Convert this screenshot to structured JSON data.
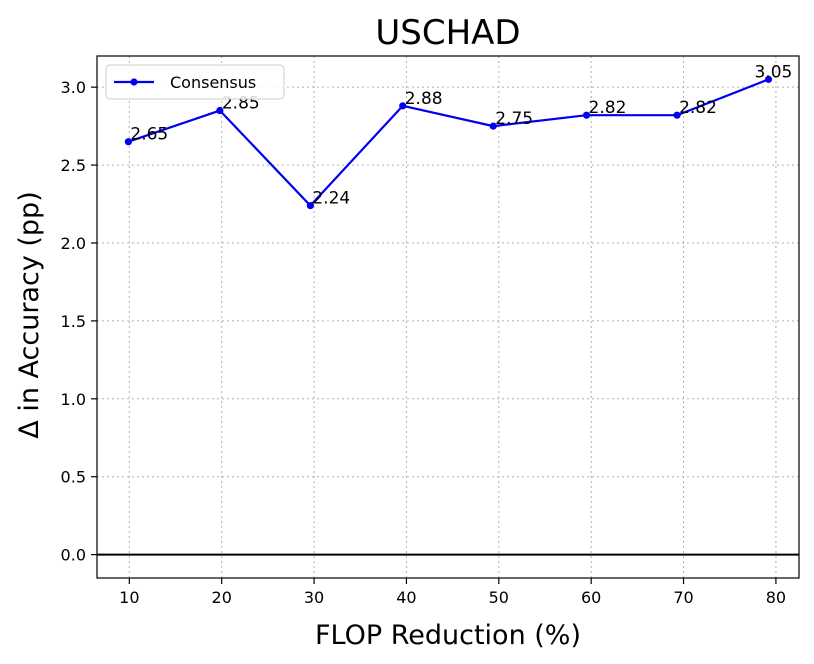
{
  "chart_data": {
    "type": "line",
    "title": "USCHAD",
    "xlabel": "FLOP Reduction (%)",
    "ylabel": "Δ in Accuracy (pp)",
    "xlim": [
      6.5,
      82.5
    ],
    "ylim": [
      -0.15,
      3.2
    ],
    "xticks": [
      10,
      20,
      30,
      40,
      50,
      60,
      70,
      80
    ],
    "yticks": [
      0.0,
      0.5,
      1.0,
      1.5,
      2.0,
      2.5,
      3.0
    ],
    "ytick_labels": [
      "0.0",
      "0.5",
      "1.0",
      "1.5",
      "2.0",
      "2.5",
      "3.0"
    ],
    "grid": true,
    "legend_position": "upper-left",
    "reference_line_y": 0,
    "series": [
      {
        "name": "Consensus",
        "color": "#0000ee",
        "x": [
          9.9,
          19.8,
          29.6,
          39.6,
          49.4,
          59.5,
          69.3,
          79.2
        ],
        "values": [
          2.65,
          2.85,
          2.24,
          2.88,
          2.75,
          2.82,
          2.82,
          3.05
        ],
        "labels": [
          "2.65",
          "2.85",
          "2.24",
          "2.88",
          "2.75",
          "2.82",
          "2.82",
          "3.05"
        ]
      }
    ]
  }
}
